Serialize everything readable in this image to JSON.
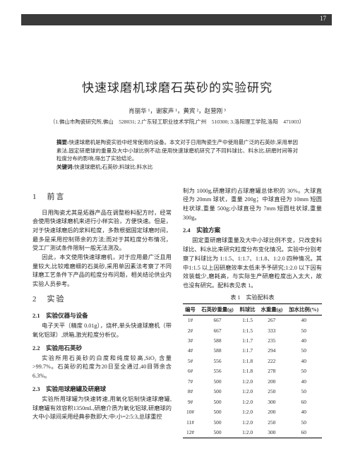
{
  "page_number": "17",
  "title": "快速球磨机球磨石英砂的实验研究",
  "authors": "肖丽华 ¹，谢家声 ¹，黄宾 ²，赵营刚 ³",
  "affiliations": "（1.佛山市陶瓷研究所,佛山　528031; 2.广东轻工职业技术学院,广州　510300; 3.洛阳理工学院,洛阳　471003）",
  "abstract_label": "摘要:",
  "abstract_text": "快速球磨机是陶瓷实验中经常使用的设备。本文对于日用陶瓷生产中使用最广泛的石英砂,采用单因素法,固定研磨球的重量及大中小球比例不动,使用快速球磨机研究了不同料球比、料水比,研磨时间等对粒度分布的影响,得出了实验结论。",
  "keywords_label": "关键词:",
  "keywords_text": "快速球磨机;石英砂;料球比;料水比",
  "sec1_heading": "1　前言",
  "sec1_p1": "日用陶瓷尤其是炻器产品在调整粉料配方时，经常会使用快速球磨机来进行小样实验，方便快速。但是，对于快速球磨后的浆料粒度，多数根据固定球磨时间，最多是采用控制筛余的方法;而对于其粒度分布情况，受工厂测试条件限制一般无法测及。",
  "sec1_p2": "因此，本文使用快速球磨机，对于应用最广泛且用量较大,比较难磨细的石英砂,采用单因素法考察了不同球磨工艺条件下产品的粒度分布问题，相关结论供业内实验人员参考。",
  "sec2_heading": "2　实验",
  "sec2_1_heading": "2.1　实验仪器与设备",
  "sec2_1_text": "电子天平（精度 0.01g），烧杯,单头快速球磨机（带氧化铝球）,烘箱,激光粒度分析仪。",
  "sec2_2_heading": "2.2　实验用石英砂",
  "sec2_2_text": "实验所用石英砂的白度和纯度较高,SiO₂ 含量>99.7%。石英砂的粒度为20日至全通过,40目筛余含 6.3%。",
  "sec2_3_heading": "2.3　实验用球磨罐及研磨球",
  "sec2_3_text": "实验所用球罐为快速转速,用氧化铝制快速球磨罐,球磨罐有效容积1350mL,研磨介质为氧化铝球,研磨球的大中小球间采用经典参数即大:中:小=2:5:3,总球重控",
  "right_p1": "制为 1000g,研磨球约占球磨罐总体积的 30%。大球直径为 20mm 球状，重量 200g；中球直径为 10mm 短圆柱状球,重量 500g;小球直径为 7mm 短圆柱状球,重量 300g。",
  "sec2_4_heading": "2.4　实验方案",
  "sec2_4_text": "固定重研磨球重量及大中小球比例不变，只改变料球比、料水比来研究粒度分布变化情况。实验中分别考察了料球比为 1:1.5、1:1.7、1:1.8、1:2.0 四种情况。其中1:1.5 以上因研磨效率太低未予予研究;1:2.0 以下因有效装载少,磨耗高，与实际生产研磨粒度出入太大，故也没有研究。配料表见表 1。",
  "table_title": "表 1　实验配料表",
  "table": {
    "columns": [
      "编号",
      "石英砂重量(g)",
      "料球比",
      "水重量(g)",
      "加水比例(%)"
    ],
    "rows": [
      [
        "1#",
        "667",
        "1:1.5",
        "267",
        "40"
      ],
      [
        "2#",
        "667",
        "1:1.5",
        "333",
        "50"
      ],
      [
        "3#",
        "588",
        "1:1.7",
        "235",
        "40"
      ],
      [
        "4#",
        "588",
        "1:1.7",
        "294",
        "50"
      ],
      [
        "5#",
        "556",
        "1:1.8",
        "222",
        "40"
      ],
      [
        "6#",
        "556",
        "1:1.8",
        "278",
        "50"
      ],
      [
        "7#",
        "500",
        "1:2.0",
        "200",
        "40"
      ],
      [
        "8#",
        "500",
        "1:2.0",
        "250",
        "50"
      ],
      [
        "9#",
        "500",
        "1:2.0",
        "300",
        "60"
      ],
      [
        "10#",
        "500",
        "1:2.0",
        "200",
        "40"
      ],
      [
        "11#",
        "500",
        "1:2.0",
        "250",
        "50"
      ],
      [
        "12#",
        "500",
        "1:2.0",
        "300",
        "60"
      ]
    ]
  }
}
